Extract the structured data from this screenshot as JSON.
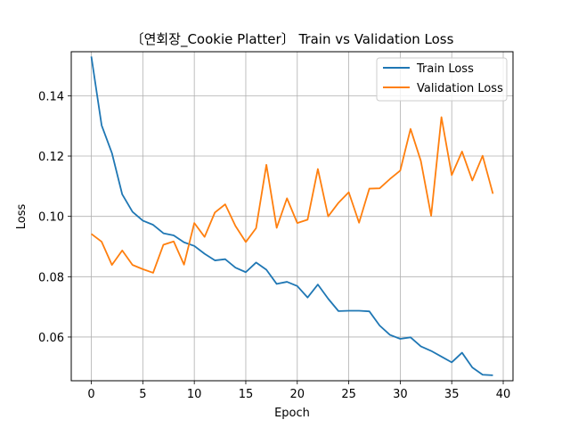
{
  "chart_data": {
    "type": "line",
    "title": "〔연회장_Cookie Platter〕 Train vs Validation Loss",
    "xlabel": "Epoch",
    "ylabel": "Loss",
    "xlim": [
      -1.95,
      40.95
    ],
    "ylim": [
      0.0455,
      0.1546
    ],
    "xticks": [
      0,
      5,
      10,
      15,
      20,
      25,
      30,
      35,
      40
    ],
    "xtick_labels": [
      "0",
      "5",
      "10",
      "15",
      "20",
      "25",
      "30",
      "35",
      "40"
    ],
    "yticks": [
      0.06,
      0.08,
      0.1,
      0.12,
      0.14
    ],
    "ytick_labels": [
      "0.06",
      "0.08",
      "0.10",
      "0.12",
      "0.14"
    ],
    "grid": true,
    "legend_position": "top-right",
    "x": [
      0,
      1,
      2,
      3,
      4,
      5,
      6,
      7,
      8,
      9,
      10,
      11,
      12,
      13,
      14,
      15,
      16,
      17,
      18,
      19,
      20,
      21,
      22,
      23,
      24,
      25,
      26,
      27,
      28,
      29,
      30,
      31,
      32,
      33,
      34,
      35,
      36,
      37,
      38,
      39
    ],
    "series": [
      {
        "name": "Train Loss",
        "color": "#1f77b4",
        "values": [
          0.153,
          0.1302,
          0.121,
          0.1073,
          0.1015,
          0.0986,
          0.0972,
          0.0944,
          0.0937,
          0.0914,
          0.0902,
          0.0876,
          0.0854,
          0.0858,
          0.083,
          0.0815,
          0.0847,
          0.0823,
          0.0776,
          0.0783,
          0.0769,
          0.0731,
          0.0774,
          0.0727,
          0.0686,
          0.0687,
          0.0687,
          0.0685,
          0.0638,
          0.0607,
          0.0594,
          0.0599,
          0.0569,
          0.0554,
          0.0535,
          0.0516,
          0.0548,
          0.0499,
          0.0475,
          0.0473
        ]
      },
      {
        "name": "Validation Loss",
        "color": "#ff7f0e",
        "values": [
          0.0942,
          0.0916,
          0.0839,
          0.0887,
          0.0839,
          0.0825,
          0.0813,
          0.0906,
          0.0917,
          0.084,
          0.0978,
          0.0932,
          0.1013,
          0.104,
          0.0968,
          0.0915,
          0.0961,
          0.1171,
          0.0962,
          0.106,
          0.0978,
          0.0989,
          0.1157,
          0.1,
          0.1045,
          0.108,
          0.0979,
          0.1092,
          0.1093,
          0.1124,
          0.1152,
          0.129,
          0.1184,
          0.1002,
          0.1329,
          0.1137,
          0.1215,
          0.1119,
          0.1201,
          0.1075
        ]
      }
    ]
  }
}
